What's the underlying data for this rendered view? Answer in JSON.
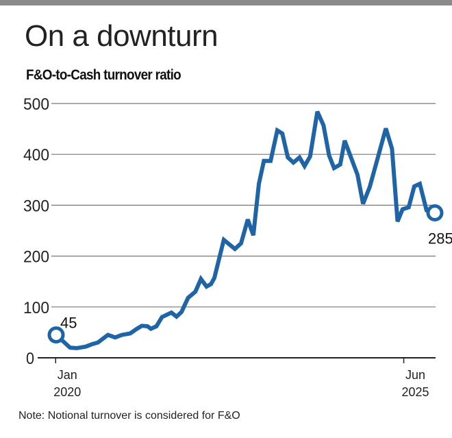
{
  "title": "On a downturn",
  "subtitle": "F&O-to-Cash turnover ratio",
  "note": "Note: Notional turnover is considered for F&O",
  "colors": {
    "line": "#1f64a6",
    "grid": "#777777",
    "axis": "#222222"
  },
  "chart_data": {
    "type": "line",
    "title": "F&O-to-Cash turnover ratio",
    "xlabel": "",
    "ylabel": "",
    "ylim": [
      0,
      500
    ],
    "xlim_months_since_jan2020": [
      0,
      68
    ],
    "yticks": [
      0,
      100,
      200,
      300,
      400,
      500
    ],
    "xticks": [
      {
        "m": 2,
        "line1": "Jan",
        "line2": "2020"
      },
      {
        "m": 64.5,
        "line1": "Jun",
        "line2": "2025"
      }
    ],
    "annotations": [
      {
        "label": "45",
        "m": 0,
        "value": 45
      },
      {
        "label": "285",
        "m": 68,
        "value": 285
      }
    ],
    "series": [
      {
        "name": "F&O-to-Cash turnover ratio",
        "points": [
          [
            0,
            45
          ],
          [
            2.5,
            20
          ],
          [
            3.7,
            19
          ],
          [
            5.3,
            22
          ],
          [
            6.5,
            27
          ],
          [
            7.5,
            30
          ],
          [
            9.3,
            45
          ],
          [
            10.6,
            40
          ],
          [
            11.8,
            45
          ],
          [
            13.3,
            48
          ],
          [
            14.5,
            57
          ],
          [
            15.4,
            63
          ],
          [
            16.4,
            62
          ],
          [
            17,
            57
          ],
          [
            18,
            62
          ],
          [
            19,
            80
          ],
          [
            20.7,
            89
          ],
          [
            21.6,
            81
          ],
          [
            22.5,
            90
          ],
          [
            23.7,
            118
          ],
          [
            25,
            130
          ],
          [
            26,
            155
          ],
          [
            27,
            140
          ],
          [
            27.8,
            145
          ],
          [
            28.4,
            157
          ],
          [
            30.1,
            232
          ],
          [
            32.1,
            214
          ],
          [
            33.2,
            225
          ],
          [
            34.4,
            272
          ],
          [
            35.4,
            241
          ],
          [
            36.4,
            342
          ],
          [
            37.3,
            387
          ],
          [
            38.5,
            387
          ],
          [
            39.7,
            447
          ],
          [
            40.6,
            441
          ],
          [
            41.6,
            394
          ],
          [
            42.6,
            384
          ],
          [
            43.7,
            394
          ],
          [
            44.6,
            377
          ],
          [
            45.6,
            396
          ],
          [
            46.9,
            484
          ],
          [
            48,
            457
          ],
          [
            49,
            398
          ],
          [
            49.9,
            373
          ],
          [
            51,
            380
          ],
          [
            51.8,
            427
          ],
          [
            54.1,
            360
          ],
          [
            55.1,
            303
          ],
          [
            56.3,
            336
          ],
          [
            59.2,
            451
          ],
          [
            60.3,
            411
          ],
          [
            61.3,
            268
          ],
          [
            62.2,
            292
          ],
          [
            63.3,
            296
          ],
          [
            64.3,
            337
          ],
          [
            65.3,
            342
          ],
          [
            66.5,
            290
          ],
          [
            68,
            285
          ]
        ]
      }
    ]
  }
}
